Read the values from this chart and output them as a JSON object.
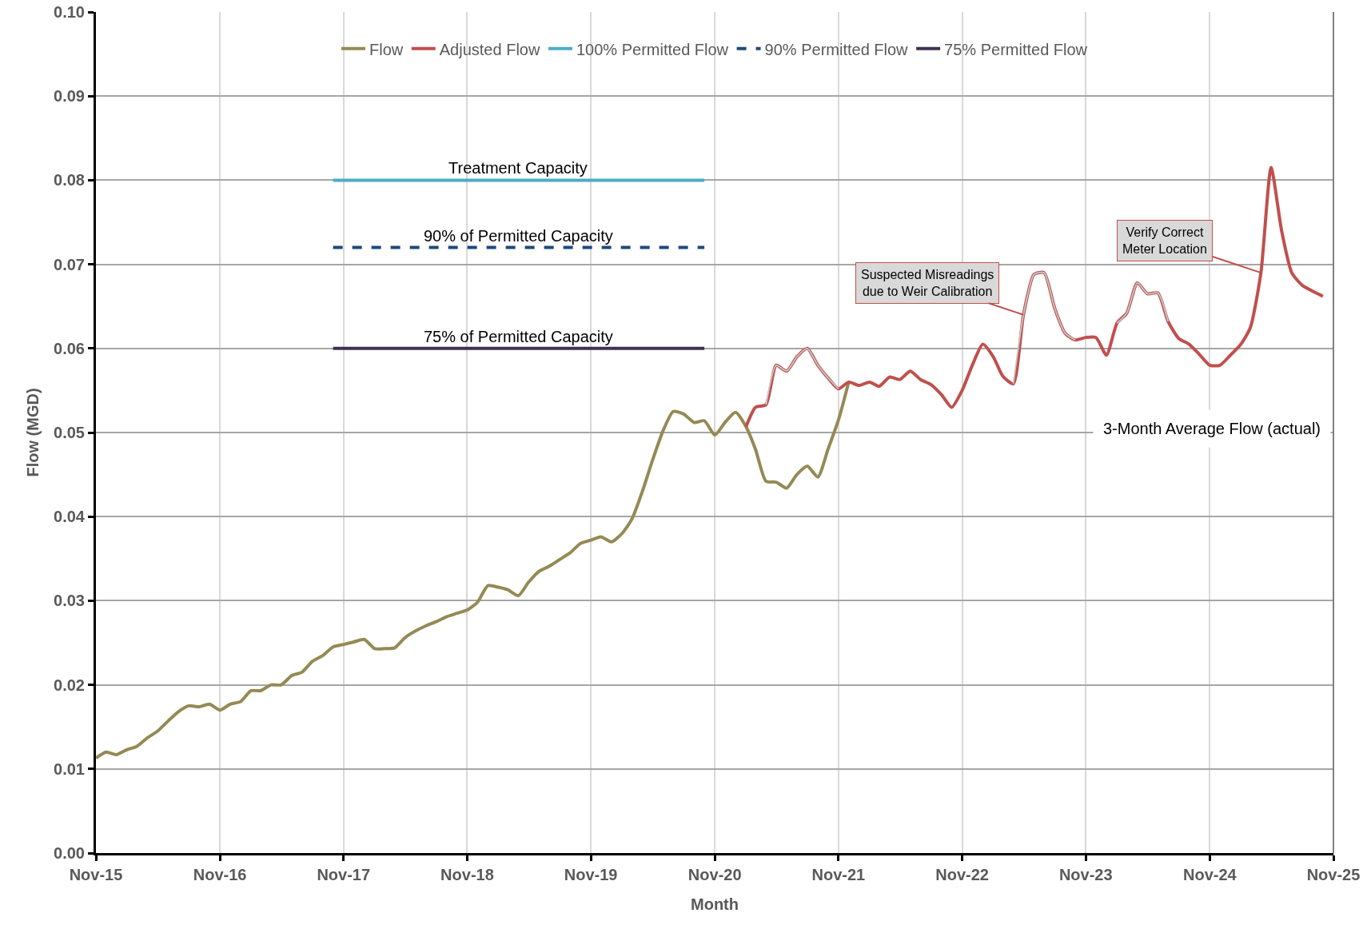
{
  "chart_data": {
    "type": "line",
    "xlabel": "Month",
    "ylabel": "Flow (MGD)",
    "xlim": [
      "2015-11",
      "2025-11"
    ],
    "ylim": [
      0,
      0.1
    ],
    "xticks": [
      {
        "value": "2015-11",
        "label": "Nov-15"
      },
      {
        "value": "2016-11",
        "label": "Nov-16"
      },
      {
        "value": "2017-11",
        "label": "Nov-17"
      },
      {
        "value": "2018-11",
        "label": "Nov-18"
      },
      {
        "value": "2019-11",
        "label": "Nov-19"
      },
      {
        "value": "2020-11",
        "label": "Nov-20"
      },
      {
        "value": "2021-11",
        "label": "Nov-21"
      },
      {
        "value": "2022-11",
        "label": "Nov-22"
      },
      {
        "value": "2023-11",
        "label": "Nov-23"
      },
      {
        "value": "2024-11",
        "label": "Nov-24"
      },
      {
        "value": "2025-11",
        "label": "Nov-25"
      }
    ],
    "yticks": [
      {
        "value": 0,
        "label": "0.00"
      },
      {
        "value": 0.01,
        "label": "0.01"
      },
      {
        "value": 0.02,
        "label": "0.02"
      },
      {
        "value": 0.03,
        "label": "0.03"
      },
      {
        "value": 0.04,
        "label": "0.04"
      },
      {
        "value": 0.05,
        "label": "0.05"
      },
      {
        "value": 0.06,
        "label": "0.06"
      },
      {
        "value": 0.07,
        "label": "0.07"
      },
      {
        "value": 0.08,
        "label": "0.08"
      },
      {
        "value": 0.09,
        "label": "0.09"
      },
      {
        "value": 0.1,
        "label": "0.10"
      }
    ],
    "grid": true,
    "legend": "top",
    "marker": "none",
    "series": [
      {
        "name": "Flow",
        "color": "#948a54",
        "x": [
          "2015-11",
          "2015-12",
          "2016-01",
          "2016-02",
          "2016-03",
          "2016-04",
          "2016-05",
          "2016-06",
          "2016-07",
          "2016-08",
          "2016-09",
          "2016-10",
          "2016-11",
          "2016-12",
          "2017-01",
          "2017-02",
          "2017-03",
          "2017-04",
          "2017-05",
          "2017-06",
          "2017-07",
          "2017-08",
          "2017-09",
          "2017-10",
          "2017-11",
          "2017-12",
          "2018-01",
          "2018-02",
          "2018-03",
          "2018-04",
          "2018-05",
          "2018-06",
          "2018-07",
          "2018-08",
          "2018-09",
          "2018-10",
          "2018-11",
          "2018-12",
          "2019-01",
          "2019-02",
          "2019-03",
          "2019-04",
          "2019-05",
          "2019-06",
          "2019-07",
          "2019-08",
          "2019-09",
          "2019-10",
          "2019-11",
          "2019-12",
          "2020-01",
          "2020-02",
          "2020-03",
          "2020-04",
          "2020-05",
          "2020-06",
          "2020-07",
          "2020-08",
          "2020-09",
          "2020-10",
          "2020-11",
          "2020-12",
          "2021-01",
          "2021-02",
          "2021-03",
          "2021-04",
          "2021-05",
          "2021-06",
          "2021-07",
          "2021-08",
          "2021-09",
          "2021-10",
          "2021-11",
          "2021-12"
        ],
        "values": [
          0.0113,
          0.012,
          0.0117,
          0.0123,
          0.0127,
          0.0137,
          0.0145,
          0.0157,
          0.0168,
          0.0175,
          0.0174,
          0.0177,
          0.017,
          0.0177,
          0.018,
          0.0193,
          0.0193,
          0.02,
          0.02,
          0.0211,
          0.0215,
          0.0228,
          0.0235,
          0.0245,
          0.0248,
          0.0251,
          0.0254,
          0.0243,
          0.0243,
          0.0244,
          0.0256,
          0.0264,
          0.027,
          0.0275,
          0.0281,
          0.0285,
          0.0289,
          0.0298,
          0.0318,
          0.0316,
          0.0313,
          0.0306,
          0.0322,
          0.0335,
          0.0341,
          0.0349,
          0.0357,
          0.0368,
          0.0372,
          0.0376,
          0.037,
          0.038,
          0.0397,
          0.043,
          0.0467,
          0.0502,
          0.0525,
          0.0522,
          0.0512,
          0.0514,
          0.0497,
          0.0512,
          0.0524,
          0.0507,
          0.048,
          0.0442,
          0.0441,
          0.0434,
          0.045,
          0.046,
          0.0447,
          0.048,
          0.0515,
          0.056
        ]
      },
      {
        "name": "Adjusted Flow",
        "color": "#c0504d",
        "x": [
          "2021-02",
          "2021-03",
          "2021-04",
          "2021-05",
          "2021-06",
          "2021-07",
          "2021-08",
          "2021-09",
          "2021-10",
          "2021-11",
          "2021-12",
          "2022-01",
          "2022-02",
          "2022-03",
          "2022-04",
          "2022-05",
          "2022-06",
          "2022-07",
          "2022-08",
          "2022-09",
          "2022-10",
          "2022-11",
          "2022-12",
          "2023-01",
          "2023-02",
          "2023-03",
          "2023-04",
          "2023-05",
          "2023-06",
          "2023-07",
          "2023-08",
          "2023-09",
          "2023-10",
          "2023-11",
          "2023-12",
          "2024-01",
          "2024-02",
          "2024-03",
          "2024-04",
          "2024-05",
          "2024-06",
          "2024-07",
          "2024-08",
          "2024-09",
          "2024-10",
          "2024-11",
          "2024-12",
          "2025-01",
          "2025-02",
          "2025-03",
          "2025-04",
          "2025-05",
          "2025-06",
          "2025-07",
          "2025-08",
          "2025-09",
          "2025-10"
        ],
        "values": [
          0.0507,
          0.053,
          0.0533,
          0.058,
          0.0573,
          0.059,
          0.06,
          0.058,
          0.0565,
          0.0552,
          0.056,
          0.0556,
          0.056,
          0.0555,
          0.0566,
          0.0563,
          0.0573,
          0.0563,
          0.0557,
          0.0545,
          0.053,
          0.055,
          0.058,
          0.0605,
          0.059,
          0.0567,
          0.0558,
          0.064,
          0.0688,
          0.069,
          0.0648,
          0.0618,
          0.061,
          0.0613,
          0.0613,
          0.0592,
          0.063,
          0.0642,
          0.0678,
          0.0665,
          0.0666,
          0.0632,
          0.0612,
          0.0605,
          0.0593,
          0.058,
          0.058,
          0.0592,
          0.0605,
          0.0625,
          0.069,
          0.0815,
          0.074,
          0.069,
          0.0675,
          0.0668,
          0.0662
        ]
      },
      {
        "name": "100% Permitted Flow",
        "color": "#4bacc6",
        "x": [
          "2017-10",
          "2020-10"
        ],
        "values": [
          0.08,
          0.08
        ]
      },
      {
        "name": "90% Permitted Flow",
        "color": "#1f497d",
        "line_style": "dashed",
        "x": [
          "2017-10",
          "2020-10"
        ],
        "values": [
          0.072,
          0.072
        ]
      },
      {
        "name": "75% Permitted Flow",
        "color": "#403152",
        "x": [
          "2017-10",
          "2020-10"
        ],
        "values": [
          0.06,
          0.06
        ]
      },
      {
        "color": "#c8c8c8",
        "x": [
          "2021-04",
          "2021-05",
          "2021-06",
          "2021-07",
          "2021-08",
          "2021-09",
          "2021-10",
          "2021-11",
          "2022-01",
          "2023-04",
          "2023-05",
          "2023-06",
          "2023-07",
          "2023-08",
          "2023-09",
          "2023-10",
          "2023-12",
          "2024-02",
          "2024-03",
          "2024-04",
          "2024-05",
          "2024-06",
          "2024-07"
        ],
        "values": [
          0.0533,
          0.058,
          0.0573,
          0.059,
          0.06,
          0.058,
          0.0565,
          0.0552,
          null,
          0.0558,
          0.064,
          0.0688,
          0.069,
          0.0648,
          0.0618,
          0.061,
          null,
          0.063,
          0.0642,
          0.0678,
          0.0665,
          0.0666,
          0.0632
        ]
      }
    ],
    "annotations": [
      {
        "text": "Treatment Capacity",
        "x": "2019-04",
        "y": 0.08
      },
      {
        "text": "90% of Permitted Capacity",
        "x": "2019-04",
        "y": 0.072
      },
      {
        "text": "75% of Permitted Capacity",
        "x": "2019-04",
        "y": 0.06
      },
      {
        "text": "Suspected Misreadings\ndue to Weir Calibration",
        "x": "2023-05",
        "y": 0.064
      },
      {
        "text": "Verify Correct\nMeter Location",
        "x": "2025-04",
        "y": 0.069
      },
      "3-Month Average Flow (actual)"
    ]
  }
}
